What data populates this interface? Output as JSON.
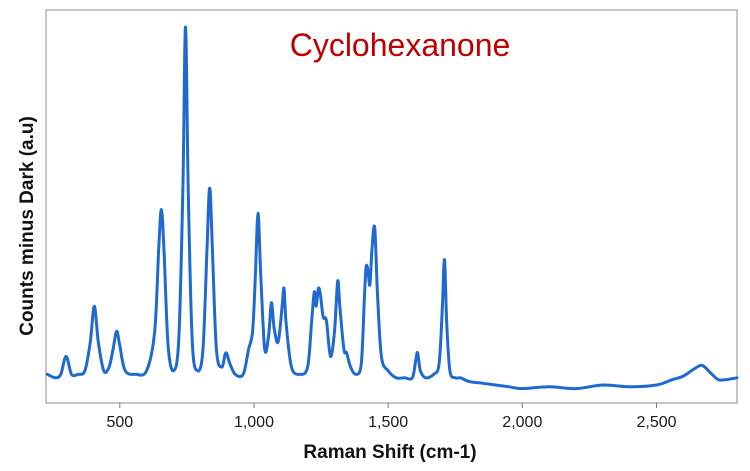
{
  "chart_data": {
    "type": "line",
    "title": "Cyclohexanone",
    "title_color": "#c00000",
    "xlabel": "Raman Shift (cm-1)",
    "ylabel": "Counts minus Dark (a.u)",
    "xlim": [
      225,
      2800
    ],
    "ylim": [
      0,
      1
    ],
    "x_ticks": [
      500,
      1000,
      1500,
      2000,
      2500
    ],
    "x_tick_labels": [
      "500",
      "1,000",
      "1,500",
      "2,000",
      "2,500"
    ],
    "y_ticks_shown": false,
    "grid": false,
    "legend": "none",
    "series": [
      {
        "color": "#1f6ad0",
        "x": [
          230,
          260,
          280,
          300,
          320,
          345,
          370,
          390,
          405,
          420,
          440,
          460,
          475,
          488,
          500,
          520,
          560,
          600,
          630,
          645,
          655,
          665,
          680,
          700,
          720,
          735,
          745,
          755,
          770,
          790,
          810,
          825,
          835,
          845,
          860,
          880,
          895,
          910,
          930,
          960,
          980,
          995,
          1005,
          1015,
          1025,
          1040,
          1055,
          1065,
          1075,
          1090,
          1105,
          1112,
          1120,
          1140,
          1170,
          1200,
          1215,
          1225,
          1232,
          1240,
          1248,
          1258,
          1270,
          1285,
          1300,
          1312,
          1320,
          1335,
          1345,
          1360,
          1380,
          1400,
          1412,
          1418,
          1425,
          1432,
          1440,
          1450,
          1460,
          1475,
          1500,
          1530,
          1560,
          1590,
          1603,
          1610,
          1620,
          1640,
          1670,
          1690,
          1702,
          1710,
          1718,
          1730,
          1750,
          1770,
          1800,
          1850,
          1900,
          1950,
          2000,
          2100,
          2200,
          2300,
          2400,
          2500,
          2560,
          2600,
          2640,
          2665,
          2680,
          2700,
          2730,
          2760,
          2800
        ],
        "values": [
          0.03,
          0.02,
          0.03,
          0.08,
          0.03,
          0.03,
          0.04,
          0.12,
          0.22,
          0.12,
          0.04,
          0.05,
          0.1,
          0.15,
          0.11,
          0.04,
          0.03,
          0.04,
          0.15,
          0.38,
          0.49,
          0.37,
          0.11,
          0.04,
          0.13,
          0.55,
          1.0,
          0.55,
          0.12,
          0.04,
          0.1,
          0.38,
          0.55,
          0.38,
          0.1,
          0.05,
          0.09,
          0.06,
          0.03,
          0.03,
          0.1,
          0.15,
          0.3,
          0.48,
          0.31,
          0.1,
          0.14,
          0.23,
          0.16,
          0.12,
          0.22,
          0.27,
          0.17,
          0.05,
          0.03,
          0.05,
          0.18,
          0.26,
          0.22,
          0.27,
          0.25,
          0.19,
          0.18,
          0.08,
          0.15,
          0.29,
          0.22,
          0.1,
          0.09,
          0.05,
          0.03,
          0.06,
          0.25,
          0.33,
          0.32,
          0.28,
          0.38,
          0.44,
          0.26,
          0.08,
          0.04,
          0.02,
          0.02,
          0.02,
          0.07,
          0.09,
          0.04,
          0.02,
          0.03,
          0.06,
          0.22,
          0.35,
          0.18,
          0.04,
          0.02,
          0.02,
          0.01,
          0.005,
          0.0,
          -0.005,
          -0.01,
          -0.005,
          -0.01,
          0.0,
          -0.005,
          0.0,
          0.015,
          0.025,
          0.045,
          0.055,
          0.05,
          0.035,
          0.015,
          0.015,
          0.02
        ]
      }
    ]
  }
}
